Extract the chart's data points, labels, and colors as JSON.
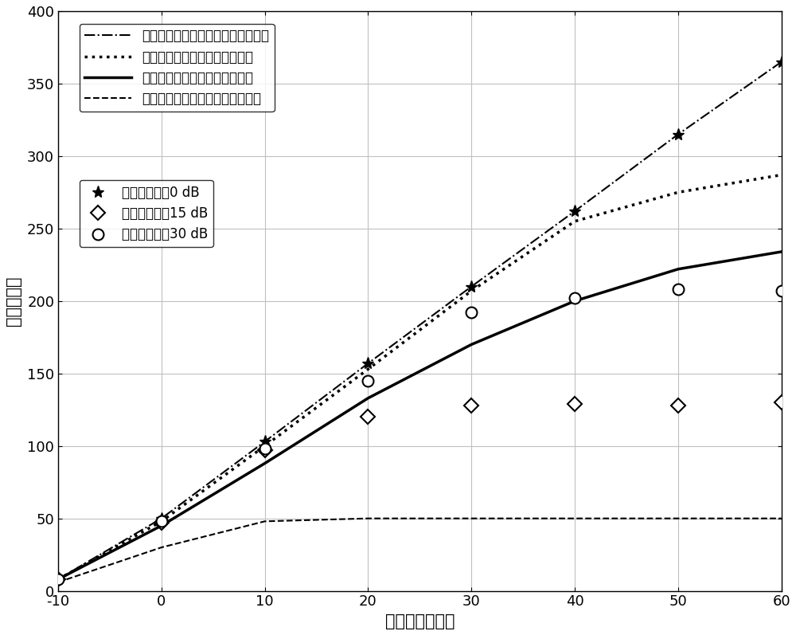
{
  "x": [
    -10,
    0,
    10,
    20,
    30,
    40,
    50,
    60
  ],
  "xlabel": "传输信号信噪比",
  "ylabel": "频可达速率",
  "ylim": [
    0,
    400
  ],
  "xlim": [
    -10,
    60
  ],
  "yticks": [
    0,
    50,
    100,
    150,
    200,
    250,
    300,
    350,
    400
  ],
  "xticks": [
    -10,
    0,
    10,
    20,
    30,
    40,
    50,
    60
  ],
  "line1_label": "完美信道状态信息下的混合波束成形",
  "line1_style": "-.",
  "line1_lw": 1.5,
  "line1_y": [
    8,
    50,
    103,
    157,
    210,
    262,
    315,
    365
  ],
  "line2_label": "可调共享幅度加权模拟波束成形",
  "line2_style": ":",
  "line2_lw": 2.5,
  "line2_y": [
    8,
    48,
    100,
    153,
    207,
    255,
    275,
    287
  ],
  "line3_label": "固定共享幅度加权模拟波束成形",
  "line3_style": "-",
  "line3_lw": 2.5,
  "line3_y": [
    8,
    45,
    88,
    133,
    170,
    200,
    222,
    234
  ],
  "line4_label": "基于估计等效信道的混合波束成形",
  "line4_style": "--",
  "line4_lw": 1.5,
  "line4_y": [
    6,
    30,
    48,
    50,
    50,
    50,
    50,
    50
  ],
  "snr0_label": "导频信噪比为0 dB",
  "snr0_y_on_dashdot": [
    8,
    50,
    103,
    157,
    210,
    262,
    315,
    365
  ],
  "snr15_label": "导频信噪比为15 dB",
  "snr15_y": [
    8,
    47,
    97,
    120,
    128,
    129,
    128,
    130
  ],
  "snr30_label": "导频信噪比为30 dB",
  "snr30_y": [
    8,
    48,
    98,
    145,
    192,
    202,
    208,
    207
  ],
  "fontsize_label": 15,
  "fontsize_tick": 13,
  "fontsize_legend": 12
}
